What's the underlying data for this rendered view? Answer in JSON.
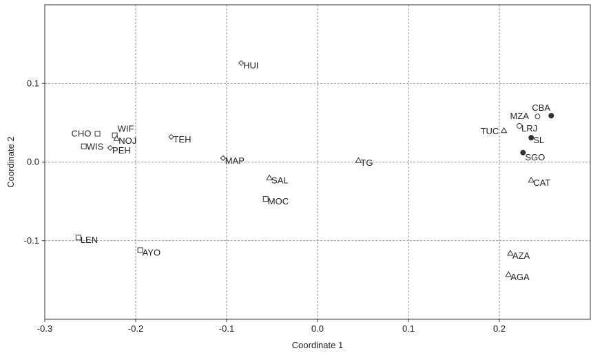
{
  "chart_data": {
    "type": "scatter",
    "title": "",
    "xlabel": "Coordinate 1",
    "ylabel": "Coordinate 2",
    "xlim": [
      -0.3,
      0.3
    ],
    "ylim": [
      -0.2,
      0.2
    ],
    "x_ticks": [
      -0.3,
      -0.2,
      -0.1,
      0.0,
      0.1,
      0.2
    ],
    "x_tick_labels": [
      "-0.3",
      "-0.2",
      "-0.1",
      "0.0",
      "0.1",
      "0.2"
    ],
    "y_ticks": [
      -0.1,
      0.0,
      0.1
    ],
    "y_tick_labels": [
      "-0.1",
      "0.0",
      "0.1"
    ],
    "grid": true,
    "legend": "none",
    "colors": {
      "marker": "#333333",
      "grid": "#777777",
      "axis": "#333333"
    },
    "points": [
      {
        "label": "HUI",
        "x": -0.084,
        "y": 0.126,
        "marker": "diamond"
      },
      {
        "label": "TEH",
        "x": -0.161,
        "y": 0.032,
        "marker": "diamond"
      },
      {
        "label": "MAP",
        "x": -0.104,
        "y": 0.005,
        "marker": "diamond"
      },
      {
        "label": "PEH",
        "x": -0.228,
        "y": 0.018,
        "marker": "diamond"
      },
      {
        "label": "CHO",
        "x": -0.242,
        "y": 0.036,
        "marker": "square"
      },
      {
        "label": "WIF",
        "x": -0.223,
        "y": 0.034,
        "marker": "square"
      },
      {
        "label": "NOJ",
        "x": -0.221,
        "y": 0.03,
        "marker": "triangle"
      },
      {
        "label": "WIS",
        "x": -0.257,
        "y": 0.02,
        "marker": "square"
      },
      {
        "label": "LEN",
        "x": -0.263,
        "y": -0.096,
        "marker": "square"
      },
      {
        "label": "AYO",
        "x": -0.195,
        "y": -0.112,
        "marker": "square"
      },
      {
        "label": "SAL",
        "x": -0.053,
        "y": -0.02,
        "marker": "triangle"
      },
      {
        "label": "MOC",
        "x": -0.057,
        "y": -0.047,
        "marker": "square"
      },
      {
        "label": "TG",
        "x": 0.045,
        "y": 0.002,
        "marker": "triangle"
      },
      {
        "label": "TUC",
        "x": 0.205,
        "y": 0.04,
        "marker": "triangle"
      },
      {
        "label": "MZA",
        "x": 0.242,
        "y": 0.058,
        "marker": "circle-open"
      },
      {
        "label": "CBA",
        "x": 0.257,
        "y": 0.059,
        "marker": "circle-filled"
      },
      {
        "label": "LRJ",
        "x": 0.222,
        "y": 0.046,
        "marker": "circle-open"
      },
      {
        "label": "SL",
        "x": 0.235,
        "y": 0.031,
        "marker": "circle-filled"
      },
      {
        "label": "SGO",
        "x": 0.226,
        "y": 0.012,
        "marker": "circle-filled"
      },
      {
        "label": "CAT",
        "x": 0.235,
        "y": -0.023,
        "marker": "triangle"
      },
      {
        "label": "AZA",
        "x": 0.212,
        "y": -0.116,
        "marker": "triangle"
      },
      {
        "label": "AGA",
        "x": 0.21,
        "y": -0.143,
        "marker": "triangle"
      }
    ]
  }
}
